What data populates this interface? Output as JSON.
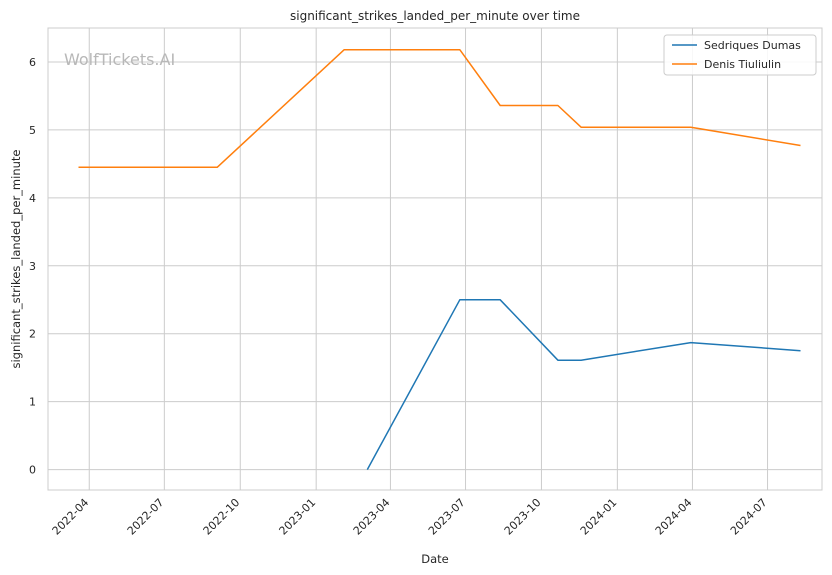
{
  "chart_data": {
    "type": "line",
    "title": "significant_strikes_landed_per_minute over time",
    "xlabel": "Date",
    "ylabel": "significant_strikes_landed_per_minute",
    "watermark": "WolfTickets.AI",
    "x_ticks": [
      "2022-04",
      "2022-07",
      "2022-10",
      "2023-01",
      "2023-04",
      "2023-07",
      "2023-10",
      "2024-01",
      "2024-04",
      "2024-07"
    ],
    "y_ticks": [
      "0",
      "1",
      "2",
      "3",
      "4",
      "5",
      "6"
    ],
    "ylim": [
      -0.3,
      6.5
    ],
    "xlim": [
      "2022-02-10",
      "2024-09-05"
    ],
    "grid": true,
    "legend_position": "top-right",
    "colors": {
      "Sedriques Dumas": "#1f77b4",
      "Denis Tiuliulin": "#ff7f0e"
    },
    "series": [
      {
        "name": "Sedriques Dumas",
        "color": "#1f77b4",
        "points": [
          {
            "x": "2023-03-04",
            "y": 0.0
          },
          {
            "x": "2023-06-24",
            "y": 2.5
          },
          {
            "x": "2023-08-12",
            "y": 2.5
          },
          {
            "x": "2023-10-21",
            "y": 1.61
          },
          {
            "x": "2023-11-18",
            "y": 1.61
          },
          {
            "x": "2024-03-30",
            "y": 1.87
          },
          {
            "x": "2024-08-10",
            "y": 1.75
          }
        ]
      },
      {
        "name": "Denis Tiuliulin",
        "color": "#ff7f0e",
        "points": [
          {
            "x": "2022-03-19",
            "y": 4.45
          },
          {
            "x": "2022-09-03",
            "y": 4.45
          },
          {
            "x": "2023-02-04",
            "y": 6.18
          },
          {
            "x": "2023-06-24",
            "y": 6.18
          },
          {
            "x": "2023-08-12",
            "y": 5.36
          },
          {
            "x": "2023-10-21",
            "y": 5.36
          },
          {
            "x": "2023-11-18",
            "y": 5.04
          },
          {
            "x": "2024-03-30",
            "y": 5.04
          },
          {
            "x": "2024-08-10",
            "y": 4.77
          }
        ]
      }
    ]
  }
}
